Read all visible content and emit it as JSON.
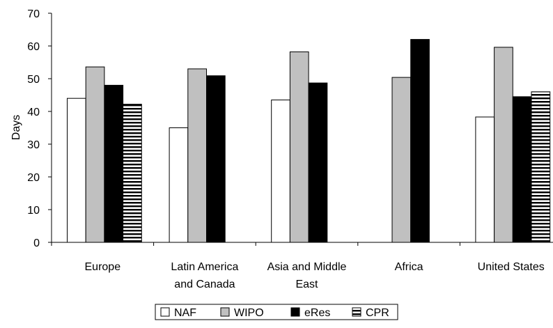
{
  "chart_data": {
    "type": "bar",
    "categories": [
      [
        "Europe"
      ],
      [
        "Latin America",
        "and Canada"
      ],
      [
        "Asia and Middle",
        "East"
      ],
      [
        "Africa"
      ],
      [
        "United States"
      ]
    ],
    "series": [
      {
        "name": "NAF",
        "values": [
          44,
          35,
          43.5,
          null,
          38.3
        ],
        "fill": "#ffffff",
        "pattern": "none"
      },
      {
        "name": "WIPO",
        "values": [
          53.6,
          53,
          58.2,
          50.4,
          59.6
        ],
        "fill": "#c0c0c0",
        "pattern": "none"
      },
      {
        "name": "eRes",
        "values": [
          48,
          50.9,
          48.7,
          62,
          44.5
        ],
        "fill": "#000000",
        "pattern": "none"
      },
      {
        "name": "CPR",
        "values": [
          42.2,
          null,
          null,
          null,
          46
        ],
        "fill": "#ffffff",
        "pattern": "horizontal-stripes"
      }
    ],
    "ylabel": "Days",
    "xlabel": "",
    "title": "",
    "ylim": [
      0,
      70
    ],
    "yticks": [
      0,
      10,
      20,
      30,
      40,
      50,
      60,
      70
    ],
    "grid": false,
    "legend_position": "bottom"
  }
}
